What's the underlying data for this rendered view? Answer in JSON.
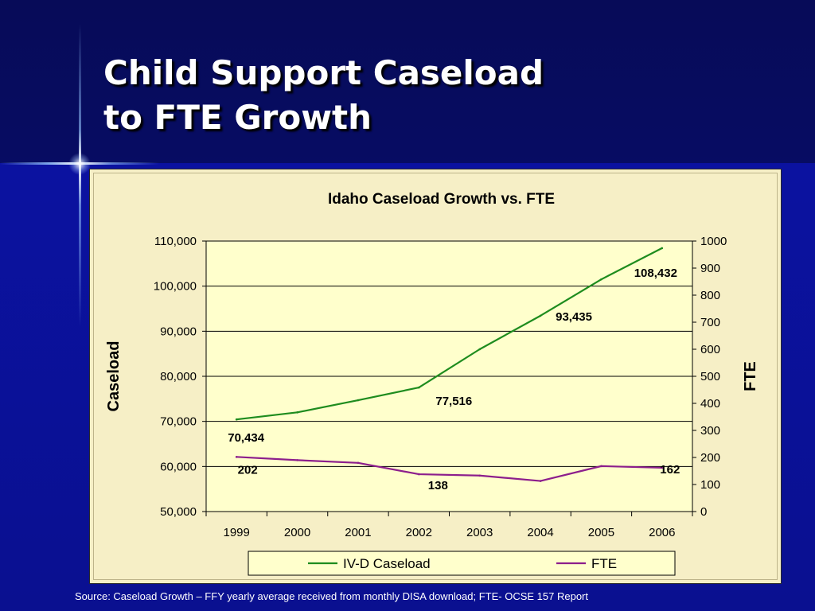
{
  "slide": {
    "title_line1": "Child Support Caseload",
    "title_line2": "to FTE Growth",
    "source": "Source: Caseload Growth – FFY yearly average received from monthly DISA download; FTE- OCSE 157 Report"
  },
  "colors": {
    "background_top": "#070b58",
    "background_bottom": "#0b12a0",
    "chart_background": "#f6efc6",
    "plot_background": "#ffffcc",
    "caseload_line": "#1e8c1e",
    "fte_line": "#8c1e8c"
  },
  "chart_data": {
    "type": "line",
    "title": "Idaho Caseload Growth vs. FTE",
    "x": [
      "1999",
      "2000",
      "2001",
      "2002",
      "2003",
      "2004",
      "2005",
      "2006"
    ],
    "ylabel_left": "Caseload",
    "ylabel_right": "FTE",
    "ylim_left": [
      50000,
      110000
    ],
    "ylim_right": [
      0,
      1000
    ],
    "yticks_left": [
      "50,000",
      "60,000",
      "70,000",
      "80,000",
      "90,000",
      "100,000",
      "110,000"
    ],
    "yticks_right": [
      "0",
      "100",
      "200",
      "300",
      "400",
      "500",
      "600",
      "700",
      "800",
      "900",
      "1000"
    ],
    "grid": true,
    "legend_position": "bottom",
    "series": [
      {
        "name": "IV-D Caseload",
        "axis": "left",
        "values": [
          70434,
          72000,
          74700,
          77516,
          86000,
          93435,
          101500,
          108432
        ],
        "labels": [
          {
            "index": 0,
            "text": "70,434"
          },
          {
            "index": 3,
            "text": "77,516"
          },
          {
            "index": 5,
            "text": "93,435"
          },
          {
            "index": 7,
            "text": "108,432"
          }
        ]
      },
      {
        "name": "FTE",
        "axis": "right",
        "values": [
          202,
          190,
          180,
          138,
          133,
          113,
          168,
          162
        ],
        "labels": [
          {
            "index": 0,
            "text": "202"
          },
          {
            "index": 3,
            "text": "138"
          },
          {
            "index": 7,
            "text": "162"
          }
        ]
      }
    ]
  }
}
